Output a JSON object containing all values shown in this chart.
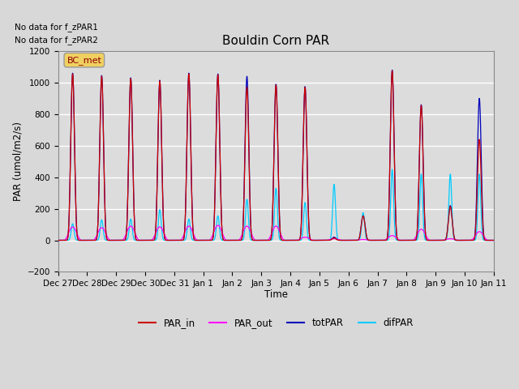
{
  "title": "Bouldin Corn PAR",
  "ylabel": "PAR (umol/m2/s)",
  "xlabel": "Time",
  "ylim": [
    -200,
    1200
  ],
  "no_data_text1": "No data for f_zPAR1",
  "no_data_text2": "No data for f_zPAR2",
  "bc_met_label": "BC_met",
  "legend_entries": [
    "PAR_in",
    "PAR_out",
    "totPAR",
    "difPAR"
  ],
  "legend_colors": [
    "#cc0000",
    "#ff00ff",
    "#0000bb",
    "#00ccff"
  ],
  "figsize": [
    6.4,
    4.8
  ],
  "dpi": 100,
  "n_days": 15,
  "peaks_totPAR": [
    1060,
    1045,
    1030,
    1015,
    1060,
    1055,
    1040,
    990,
    975,
    20,
    160,
    1080,
    860,
    220,
    900
  ],
  "peaks_PAR_in": [
    1055,
    1040,
    1025,
    1010,
    1055,
    1050,
    970,
    985,
    970,
    15,
    155,
    1075,
    855,
    215,
    640
  ],
  "peaks_PAR_out": [
    85,
    80,
    90,
    85,
    90,
    95,
    90,
    90,
    20,
    10,
    5,
    30,
    70,
    10,
    55
  ],
  "peaks_difPAR": [
    105,
    130,
    135,
    195,
    135,
    155,
    260,
    330,
    240,
    355,
    175,
    450,
    420,
    420,
    420
  ],
  "day_labels": [
    "Dec 27",
    "Dec 28",
    "Dec 29",
    "Dec 30",
    "Dec 31",
    "Jan 1",
    "Jan 2",
    "Jan 3",
    "Jan 4",
    "Jan 5",
    "Jan 6",
    "Jan 7",
    "Jan 8",
    "Jan 9",
    "Jan 10",
    "Jan 11"
  ]
}
